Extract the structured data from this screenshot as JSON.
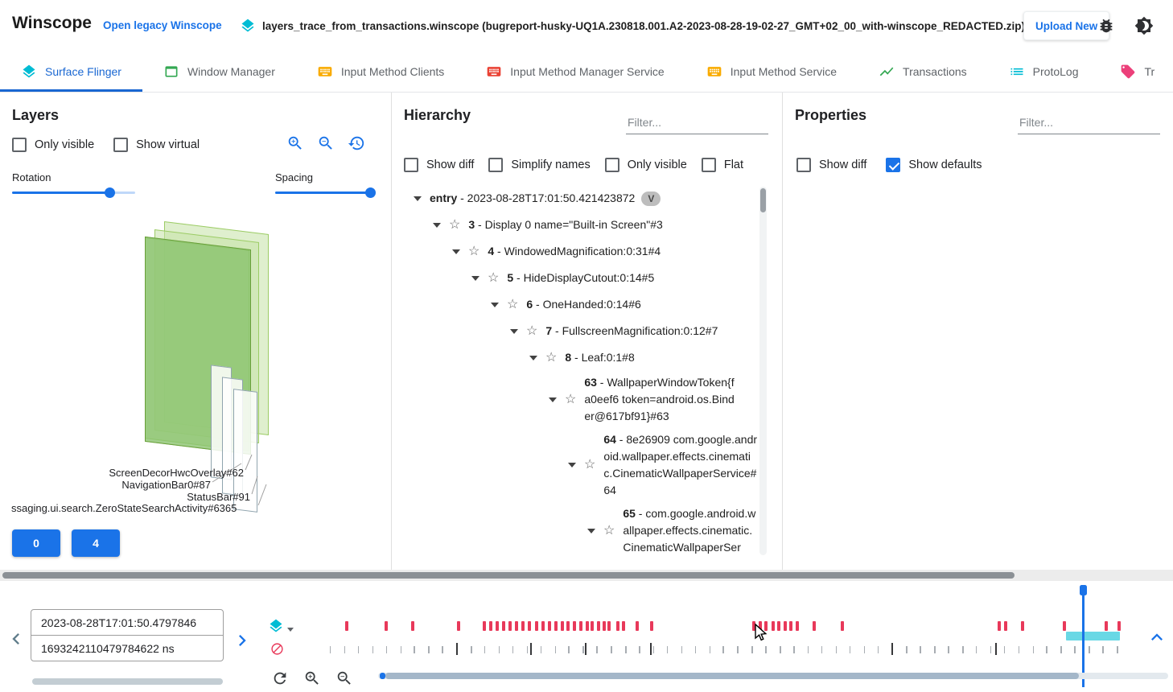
{
  "topbar": {
    "app_title": "Winscope",
    "legacy_link": "Open legacy Winscope",
    "trace_file": "layers_trace_from_transactions.winscope (bugreport-husky-UQ1A.230818.001.A2-2023-08-28-19-02-27_GMT+02_00_with-winscope_REDACTED.zip)",
    "upload_button": "Upload New"
  },
  "tabs": [
    {
      "label": "Surface Flinger",
      "icon": "layers-icon",
      "color": "#00bcd4",
      "active": true
    },
    {
      "label": "Window Manager",
      "icon": "window-icon",
      "color": "#34a853",
      "active": false
    },
    {
      "label": "Input Method Clients",
      "icon": "keyboard-icon",
      "color": "#f9ab00",
      "active": false
    },
    {
      "label": "Input Method Manager Service",
      "icon": "keyboard-icon",
      "color": "#ea4335",
      "active": false
    },
    {
      "label": "Input Method Service",
      "icon": "keyboard-icon",
      "color": "#f9ab00",
      "active": false
    },
    {
      "label": "Transactions",
      "icon": "chart-icon",
      "color": "#34a853",
      "active": false
    },
    {
      "label": "ProtoLog",
      "icon": "list-icon",
      "color": "#00bcd4",
      "active": false
    },
    {
      "label": "Tr",
      "icon": "tag-icon",
      "color": "#ec407a",
      "active": false
    }
  ],
  "layers_panel": {
    "title": "Layers",
    "checkboxes": [
      {
        "label": "Only visible",
        "checked": false
      },
      {
        "label": "Show virtual",
        "checked": false
      }
    ],
    "rotation_label": "Rotation",
    "spacing_label": "Spacing",
    "layer_labels": [
      "ScreenDecorHwcOverlay#62",
      "NavigationBar0#87",
      "StatusBar#91",
      "ssaging.ui.search.ZeroStateSearchActivity#6365"
    ],
    "display_buttons": [
      "0",
      "4"
    ]
  },
  "hierarchy_panel": {
    "title": "Hierarchy",
    "filter_placeholder": "Filter...",
    "checkboxes": [
      {
        "label": "Show diff",
        "checked": false
      },
      {
        "label": "Simplify names",
        "checked": false
      },
      {
        "label": "Only visible",
        "checked": false
      },
      {
        "label": "Flat",
        "checked": false
      }
    ],
    "tree": [
      {
        "depth": 0,
        "num": "entry",
        "text": "- 2023-08-28T17:01:50.421423872",
        "star": false,
        "wrap": false,
        "badge": "V"
      },
      {
        "depth": 1,
        "num": "3",
        "text": "- Display 0 name=\"Built-in Screen\"#3",
        "star": true,
        "wrap": false
      },
      {
        "depth": 2,
        "num": "4",
        "text": "- WindowedMagnification:0:31#4",
        "star": true,
        "wrap": false
      },
      {
        "depth": 3,
        "num": "5",
        "text": "- HideDisplayCutout:0:14#5",
        "star": true,
        "wrap": false
      },
      {
        "depth": 4,
        "num": "6",
        "text": "- OneHanded:0:14#6",
        "star": true,
        "wrap": false
      },
      {
        "depth": 5,
        "num": "7",
        "text": "- FullscreenMagnification:0:12#7",
        "star": true,
        "wrap": false
      },
      {
        "depth": 6,
        "num": "8",
        "text": "- Leaf:0:1#8",
        "star": true,
        "wrap": false
      },
      {
        "depth": 7,
        "num": "63",
        "text": "- WallpaperWindowToken{fa0eef6 token=android.os.Binder@617bf91}#63",
        "star": true,
        "wrap": true
      },
      {
        "depth": 8,
        "num": "64",
        "text": "- 8e26909 com.google.android.wallpaper.effects.cinematic.CinematicWallpaperService#64",
        "star": true,
        "wrap": true
      },
      {
        "depth": 9,
        "num": "65",
        "text": "- com.google.android.wallpaper.effects.cinematic.CinematicWallpaperSer",
        "star": true,
        "wrap": true
      }
    ]
  },
  "properties_panel": {
    "title": "Properties",
    "filter_placeholder": "Filter...",
    "checkboxes": [
      {
        "label": "Show diff",
        "checked": false
      },
      {
        "label": "Show defaults",
        "checked": true
      }
    ]
  },
  "timeline": {
    "timestamp_human": "2023-08-28T17:01:50.4797846",
    "timestamp_ns": "1693242110479784622 ns",
    "marker_color": "#e8395a",
    "sf_markers": [
      2.9,
      7.8,
      11.2,
      16.9,
      20.1,
      20.9,
      21.7,
      22.5,
      23.3,
      24.1,
      24.9,
      25.7,
      26.6,
      27.4,
      28.2,
      29.0,
      29.8,
      30.6,
      31.4,
      32.2,
      33.0,
      33.6,
      34.4,
      35.1,
      35.7,
      36.8,
      37.5,
      39.2,
      41.0,
      53.8,
      54.6,
      55.3,
      56.2,
      56.9,
      57.7,
      58.4,
      59.2,
      61.3,
      64.8,
      84.4,
      85.2,
      87.3,
      92.6,
      97.8,
      99.4
    ],
    "tick_positions": [
      1.0,
      2.8,
      4.5,
      6.3,
      8.0,
      9.8,
      11.5,
      13.3,
      15.0,
      16.8,
      18.6,
      20.3,
      22.1,
      23.8,
      25.6,
      27.3,
      29.1,
      30.8,
      32.6,
      34.3,
      36.1,
      37.9,
      39.6,
      41.4,
      43.1,
      44.9,
      46.6,
      48.4,
      50.1,
      51.9,
      53.7,
      55.4,
      57.2,
      58.9,
      60.7,
      62.4,
      64.2,
      65.9,
      67.7,
      69.4,
      71.2,
      73.0,
      74.7,
      76.5,
      78.2,
      80.0,
      81.7,
      83.5,
      85.2,
      87.0,
      88.8,
      90.5,
      92.3,
      94.0,
      95.8,
      97.5,
      99.3
    ],
    "strong_ticks": [
      16.8,
      26.0,
      32.9,
      41.0,
      71.2,
      84.1
    ],
    "cursor_percent": 95.0,
    "selection": {
      "start": 93.0,
      "end": 99.7
    }
  }
}
